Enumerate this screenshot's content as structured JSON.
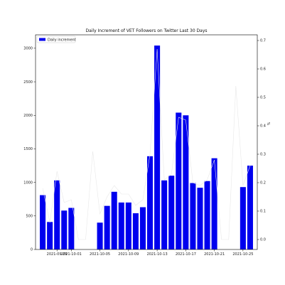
{
  "chart_data": {
    "type": "bar",
    "title": "Daily Increment of VET Followers on Twitter Last 30 Days",
    "xlabel": "",
    "ylabel": "",
    "y2label": "%",
    "legend": {
      "placement": "top-left",
      "entries": [
        "Daily increment"
      ]
    },
    "grid": false,
    "x": [
      "2021-09-27",
      "2021-09-28",
      "2021-09-29",
      "2021-09-30",
      "2021-10-01",
      "2021-10-02",
      "2021-10-03",
      "2021-10-04",
      "2021-10-05",
      "2021-10-06",
      "2021-10-07",
      "2021-10-08",
      "2021-10-09",
      "2021-10-10",
      "2021-10-11",
      "2021-10-12",
      "2021-10-13",
      "2021-10-14",
      "2021-10-15",
      "2021-10-16",
      "2021-10-17",
      "2021-10-18",
      "2021-10-19",
      "2021-10-20",
      "2021-10-21",
      "2021-10-22",
      "2021-10-23",
      "2021-10-24",
      "2021-10-25",
      "2021-10-26"
    ],
    "series": [
      {
        "name": "Daily increment",
        "axis": "left",
        "values": [
          810,
          410,
          1030,
          580,
          620,
          0,
          0,
          0,
          400,
          650,
          860,
          700,
          700,
          540,
          630,
          1390,
          3040,
          1030,
          1100,
          2040,
          2000,
          990,
          920,
          1020,
          1360,
          0,
          0,
          0,
          930,
          1250
        ]
      },
      {
        "axis": "right",
        "values": [
          0.18,
          0.06,
          0.24,
          0.13,
          0.14,
          0.0,
          0.0,
          0.31,
          0.09,
          0.15,
          0.19,
          0.16,
          0.16,
          0.12,
          0.14,
          0.3,
          0.67,
          0.21,
          0.23,
          0.43,
          0.42,
          0.2,
          0.19,
          0.21,
          0.28,
          0.0,
          0.0,
          0.54,
          0.19,
          0.26
        ]
      }
    ],
    "x_ticks": [
      "2021-09-29",
      "2021-10-01",
      "2021-10-05",
      "2021-10-09",
      "2021-10-13",
      "2021-10-17",
      "2021-10-21",
      "2021-10-25"
    ],
    "ylim": [
      0,
      3200
    ],
    "y_ticks": [
      0,
      500,
      1000,
      1500,
      2000,
      2500,
      3000
    ],
    "y2lim": [
      -0.035,
      0.72
    ],
    "y2_ticks": [
      0.0,
      0.1,
      0.2,
      0.3,
      0.4,
      0.5,
      0.6,
      0.7
    ],
    "colors": {
      "bar": "#0000ee",
      "line": "#e8e8e8"
    }
  }
}
